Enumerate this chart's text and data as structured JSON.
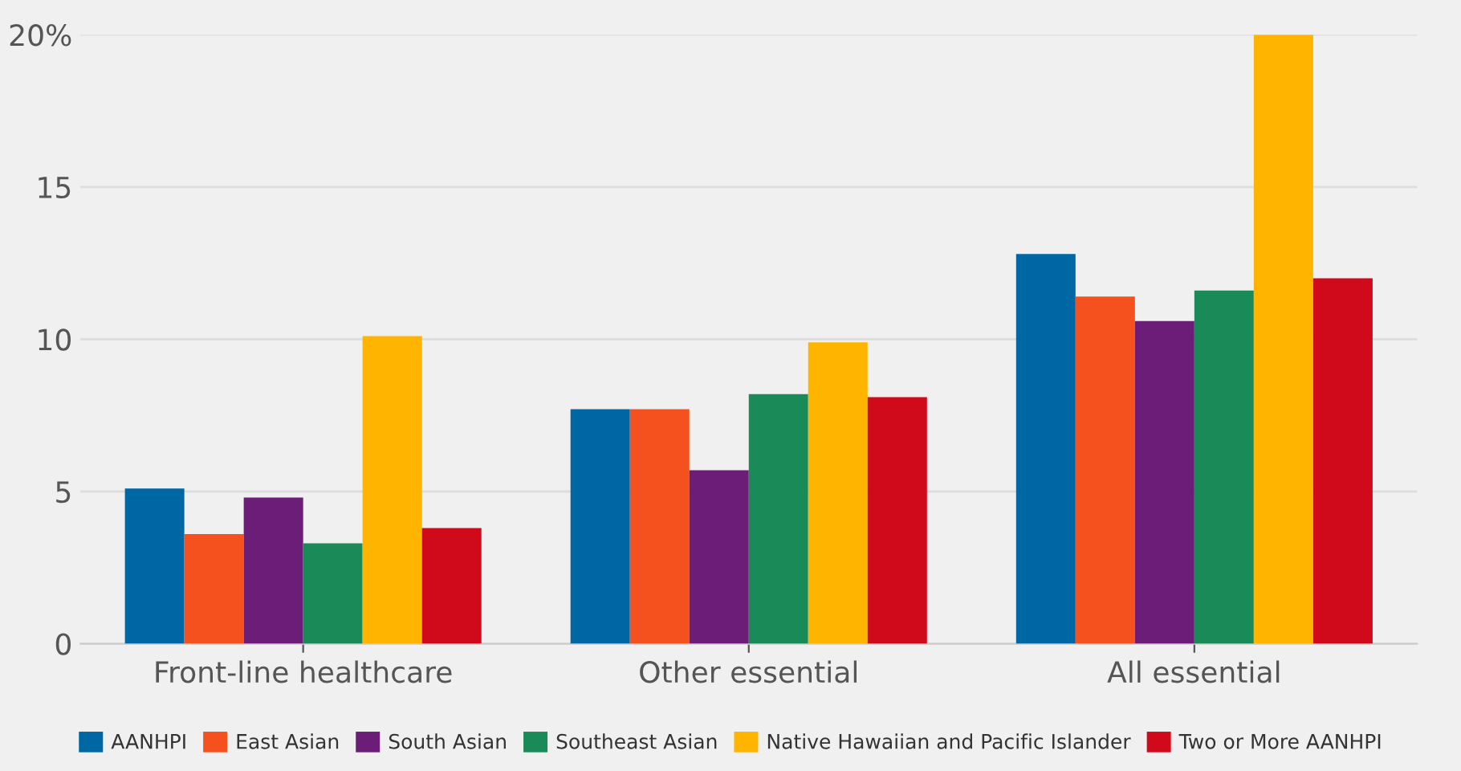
{
  "chart_data": {
    "type": "bar",
    "categories": [
      "Front-line healthcare",
      "Other essential",
      "All essential"
    ],
    "series": [
      {
        "name": "AANHPI",
        "color": "#0067a5",
        "values": [
          5.1,
          7.7,
          12.8
        ]
      },
      {
        "name": "East Asian",
        "color": "#f4511e",
        "values": [
          3.6,
          7.7,
          11.4
        ]
      },
      {
        "name": "South Asian",
        "color": "#6c1d78",
        "values": [
          4.8,
          5.7,
          10.6
        ]
      },
      {
        "name": "Southeast Asian",
        "color": "#1a8a58",
        "values": [
          3.3,
          8.2,
          11.6
        ]
      },
      {
        "name": "Native Hawaiian and Pacific Islander",
        "color": "#ffb400",
        "values": [
          10.1,
          9.9,
          20.0
        ]
      },
      {
        "name": "Two or More AANHPI",
        "color": "#d00a1a",
        "values": [
          3.8,
          8.1,
          12.0
        ]
      }
    ],
    "ylim": [
      0,
      20
    ],
    "yticks": [
      0,
      5,
      10,
      15,
      {
        "value": 20,
        "label": "20%"
      }
    ],
    "grid": "y",
    "legend": "bottom"
  }
}
